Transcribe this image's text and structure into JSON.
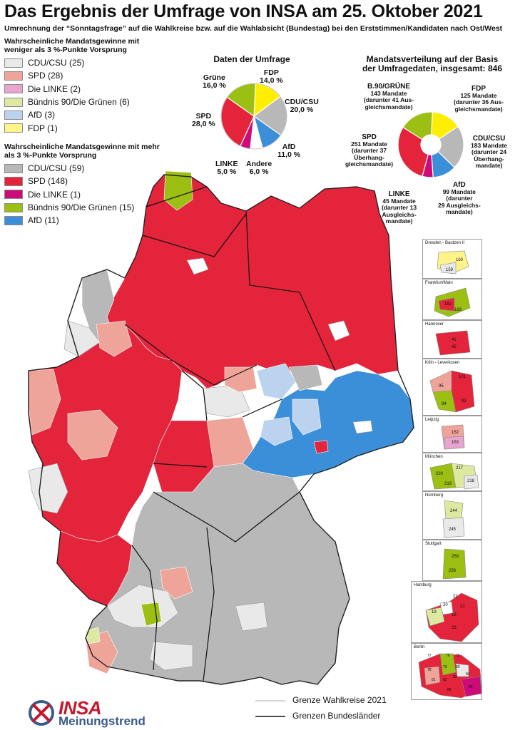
{
  "header": {
    "title": "Das Ergebnis der Umfrage von INSA am 25. Oktober 2021",
    "subtitle": "Umrechnung der “Sonntagsfrage” auf die Wahlkreise bzw. auf die Wahlabsicht (Bundestag) bei den Erststimmen/Kandidaten nach Ost/West"
  },
  "colors": {
    "cdu": "#b8b8b8",
    "cdu_light": "#e9e9e9",
    "spd": "#e3243b",
    "spd_light": "#efa49a",
    "linke": "#cc0a78",
    "linke_light": "#e9a4cf",
    "gruene": "#9bbf12",
    "gruene_light": "#dde8a0",
    "afd": "#3b8ed8",
    "afd_light": "#bcd3ef",
    "fdp": "#ffee00",
    "fdp_light": "#fff48a",
    "andere": "#ffffff"
  },
  "legend_weak": {
    "heading": "Wahrscheinliche Mandatsgewinne mit weniger als 3 %-Punkte Vorsprung",
    "items": [
      {
        "label": "CDU/CSU (25)",
        "color": "#e9e9e9"
      },
      {
        "label": "SPD (28)",
        "color": "#efa49a"
      },
      {
        "label": "Die LINKE (2)",
        "color": "#e9a4cf"
      },
      {
        "label": "Bündnis 90/Die Grünen (6)",
        "color": "#dde8a0"
      },
      {
        "label": "AfD (3)",
        "color": "#bcd3ef"
      },
      {
        "label": "FDP (1)",
        "color": "#fff48a"
      }
    ]
  },
  "legend_strong": {
    "heading": "Wahrscheinliche Mandatsgewinne mit mehr als 3 %-Punkte Vorsprung",
    "items": [
      {
        "label": "CDU/CSU (59)",
        "color": "#b8b8b8"
      },
      {
        "label": "SPD (148)",
        "color": "#e3243b"
      },
      {
        "label": "Die LINKE (1)",
        "color": "#cc0a78"
      },
      {
        "label": "Bündnis 90/Die Grünen (15)",
        "color": "#9bbf12"
      },
      {
        "label": "AfD (11)",
        "color": "#3b8ed8"
      }
    ]
  },
  "survey_pie": {
    "title": "Daten der Umfrage",
    "labels": {
      "gruene": [
        "Grüne",
        "16,0 %"
      ],
      "fdp": [
        "FDP",
        "14,0 %"
      ],
      "cdu": [
        "CDU/CSU",
        "20,0 %"
      ],
      "afd": [
        "AfD",
        "11,0 %"
      ],
      "andere": [
        "Andere",
        "6,0 %"
      ],
      "linke": [
        "LINKE",
        "5,0 %"
      ],
      "spd": [
        "SPD",
        "28,0 %"
      ]
    }
  },
  "seats_pie": {
    "title_line1": "Mandatsverteilung auf der Basis",
    "title_line2": "der Umfragedaten, insgesamt: 846",
    "labels": {
      "gruene": [
        "B.90/GRÜNE",
        "143 Mandate",
        "(darunter 41 Aus-",
        "gleichsmandate)"
      ],
      "fdp": [
        "FDP",
        "125 Mandate",
        "(darunter 36 Aus-",
        "gleichsmandate)"
      ],
      "cdu": [
        "CDU/CSU",
        "183 Mandate",
        "(darunter 24",
        "Überhang-",
        "mandate)"
      ],
      "afd": [
        "AfD",
        "99 Mandate",
        "(darunter",
        "29 Ausgleichs-",
        "mandate)"
      ],
      "linke": [
        "LINKE",
        "45 Mandate",
        "(darunter 13",
        "Ausgleichs-",
        "mandate)"
      ],
      "spd": [
        "SPD",
        "251 Mandate",
        "(darunter 37",
        "Überhang-",
        "gleichsmandate)"
      ]
    }
  },
  "chart_data": [
    {
      "type": "pie",
      "title": "Daten der Umfrage",
      "categories": [
        "FDP",
        "CDU/CSU",
        "AfD",
        "Andere",
        "LINKE",
        "SPD",
        "Grüne"
      ],
      "values": [
        14.0,
        20.0,
        11.0,
        6.0,
        5.0,
        28.0,
        16.0
      ],
      "colors": [
        "#ffee00",
        "#b8b8b8",
        "#3b8ed8",
        "#ffffff",
        "#cc0a78",
        "#e3243b",
        "#9bbf12"
      ]
    },
    {
      "type": "pie",
      "title": "Mandatsverteilung auf der Basis der Umfragedaten, insgesamt: 846",
      "categories": [
        "FDP",
        "CDU/CSU",
        "AfD",
        "LINKE",
        "SPD",
        "B.90/GRÜNE"
      ],
      "values": [
        125,
        183,
        99,
        45,
        251,
        143
      ],
      "colors": [
        "#ffee00",
        "#b8b8b8",
        "#3b8ed8",
        "#cc0a78",
        "#e3243b",
        "#9bbf12"
      ],
      "donut": true
    }
  ],
  "insets": [
    {
      "title": "Dresden - Bautzen II",
      "numbers": [
        "160",
        "159"
      ]
    },
    {
      "title": "Frankfurt/Main",
      "numbers": [
        "182",
        "183"
      ]
    },
    {
      "title": "Hannover",
      "numbers": [
        "41",
        "42"
      ]
    },
    {
      "title": "Köln - Leverkusen",
      "numbers": [
        "101",
        "95",
        "94",
        "93"
      ]
    },
    {
      "title": "Leipzig",
      "numbers": [
        "152",
        "153"
      ]
    },
    {
      "title": "München",
      "numbers": [
        "217",
        "220",
        "219",
        "218"
      ]
    },
    {
      "title": "Nürnberg",
      "numbers": [
        "244",
        "245"
      ]
    },
    {
      "title": "Stuttgart",
      "numbers": [
        "259",
        "258"
      ]
    },
    {
      "title": "Hamburg",
      "numbers": [
        "21",
        "20",
        "22",
        "19",
        "18",
        "23"
      ]
    },
    {
      "title": "Berlin",
      "numbers": [
        "77",
        "76",
        "75",
        "78",
        "79",
        "80",
        "81",
        "82",
        "83",
        "84",
        "85",
        "86"
      ]
    }
  ],
  "boundary_legend": {
    "wahlkreise": "Grenze Wahlkreise 2021",
    "bundeslaender": "Grenzen Bundesländer"
  },
  "logo": {
    "brand": "INSA",
    "sub": "Meinungstrend"
  }
}
